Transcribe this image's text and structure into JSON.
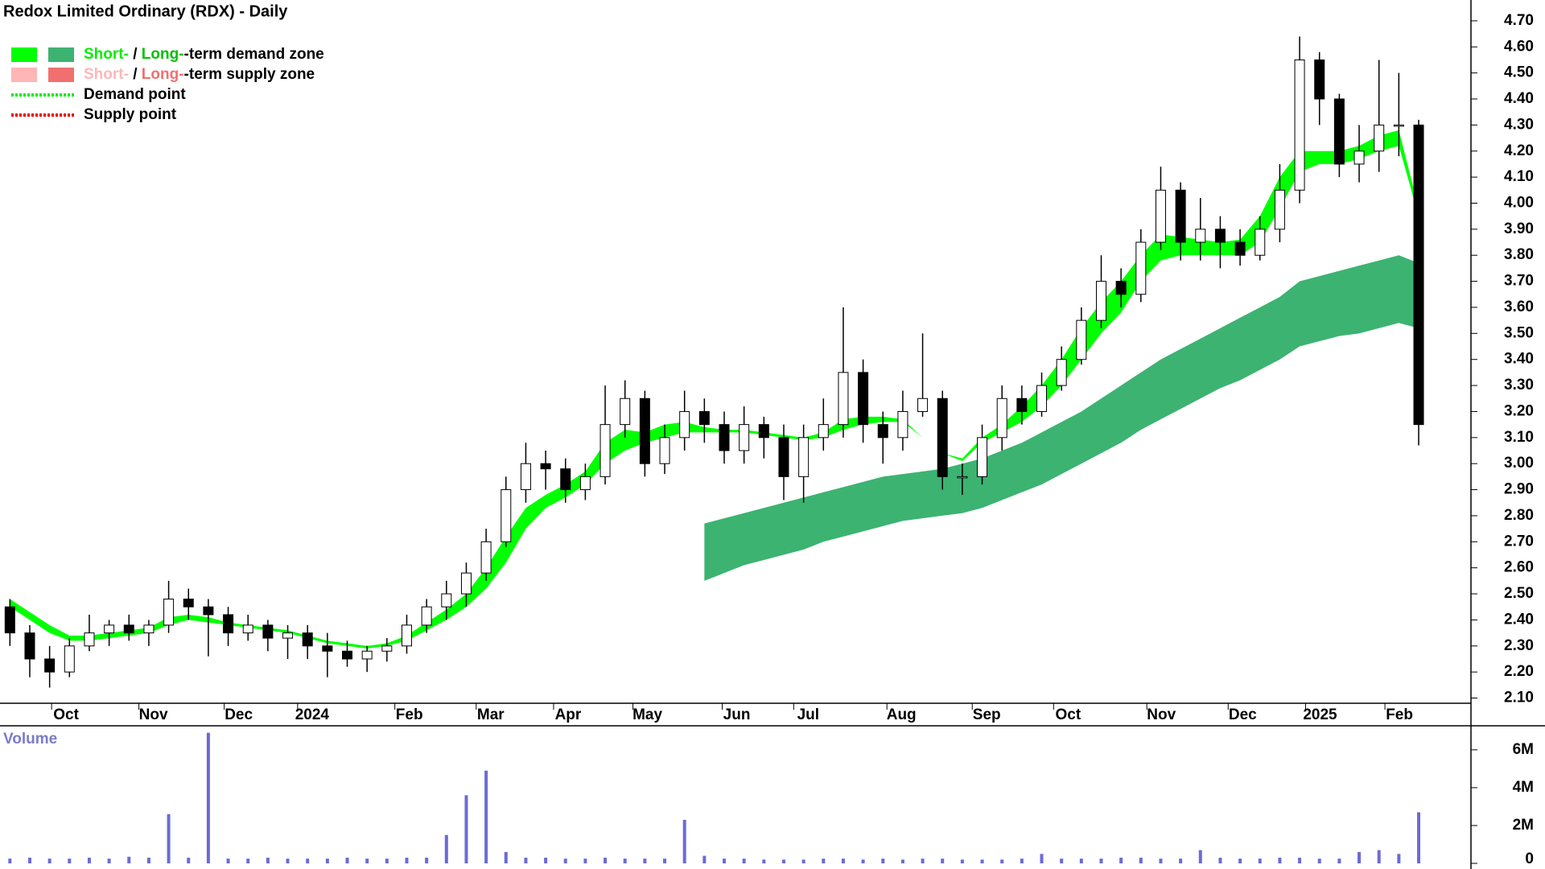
{
  "chart_data": {
    "type": "candlestick",
    "title": "Redox Limited Ordinary (RDX) - Daily",
    "legend": [
      {
        "swatches": [
          "#00ff00",
          "#3cb371"
        ],
        "parts": [
          {
            "text": "Short-",
            "color": "#00ee00"
          },
          {
            "text": " / ",
            "color": "#000000"
          },
          {
            "text": "Long-",
            "color": "#00c000"
          },
          {
            "text": "-term demand zone",
            "color": "#000000"
          }
        ]
      },
      {
        "swatches": [
          "#ffb6b6",
          "#f07070"
        ],
        "parts": [
          {
            "text": "Short-",
            "color": "#ffb6b6"
          },
          {
            "text": " / ",
            "color": "#000000"
          },
          {
            "text": "Long-",
            "color": "#f07070"
          },
          {
            "text": "-term supply zone",
            "color": "#000000"
          }
        ]
      },
      {
        "dotted": "#00ee00",
        "parts": [
          {
            "text": "Demand point",
            "color": "#000000"
          }
        ]
      },
      {
        "dotted": "#ee0000",
        "parts": [
          {
            "text": "Supply point",
            "color": "#000000"
          }
        ]
      }
    ],
    "x": [
      0,
      1,
      2,
      3,
      4,
      5,
      6,
      7,
      8,
      9,
      10,
      11,
      12,
      13,
      14,
      15,
      16,
      17,
      18,
      19,
      20,
      21,
      22,
      23,
      24,
      25,
      26,
      27,
      28,
      29,
      30,
      31,
      32,
      33,
      34,
      35,
      36,
      37,
      38,
      39,
      40,
      41,
      42,
      43,
      44,
      45,
      46,
      47,
      48,
      49,
      50,
      51,
      52,
      53,
      54,
      55,
      56,
      57,
      58,
      59,
      60,
      61,
      62,
      63,
      64,
      65,
      66,
      67,
      68,
      69,
      70,
      71
    ],
    "open": [
      2.45,
      2.35,
      2.25,
      2.2,
      2.3,
      2.35,
      2.38,
      2.35,
      2.38,
      2.48,
      2.45,
      2.42,
      2.35,
      2.38,
      2.33,
      2.35,
      2.3,
      2.28,
      2.25,
      2.28,
      2.3,
      2.38,
      2.45,
      2.5,
      2.58,
      2.7,
      2.9,
      3.0,
      2.98,
      2.9,
      2.95,
      3.15,
      3.25,
      3.0,
      3.1,
      3.2,
      3.15,
      3.05,
      3.15,
      3.1,
      2.95,
      3.1,
      3.15,
      3.35,
      3.15,
      3.1,
      3.2,
      3.25,
      2.95,
      2.95,
      3.1,
      3.25,
      3.2,
      3.3,
      3.4,
      3.55,
      3.7,
      3.65,
      3.85,
      4.05,
      3.85,
      3.9,
      3.85,
      3.8,
      3.9,
      4.05,
      4.55,
      4.4,
      4.15,
      4.2,
      4.3,
      4.3
    ],
    "high": [
      2.48,
      2.38,
      2.3,
      2.33,
      2.42,
      2.4,
      2.42,
      2.4,
      2.55,
      2.52,
      2.48,
      2.45,
      2.42,
      2.4,
      2.38,
      2.38,
      2.35,
      2.32,
      2.3,
      2.33,
      2.42,
      2.48,
      2.55,
      2.62,
      2.75,
      2.95,
      3.08,
      3.05,
      3.02,
      3.0,
      3.3,
      3.32,
      3.28,
      3.15,
      3.28,
      3.25,
      3.2,
      3.22,
      3.18,
      3.15,
      3.15,
      3.25,
      3.6,
      3.4,
      3.2,
      3.28,
      3.5,
      3.28,
      3.0,
      3.15,
      3.3,
      3.3,
      3.35,
      3.45,
      3.6,
      3.8,
      3.75,
      3.9,
      4.14,
      4.08,
      4.02,
      3.95,
      3.9,
      3.95,
      4.15,
      4.64,
      4.58,
      4.42,
      4.3,
      4.55,
      4.5,
      4.32
    ],
    "low": [
      2.3,
      2.18,
      2.14,
      2.18,
      2.28,
      2.3,
      2.32,
      2.3,
      2.35,
      2.4,
      2.26,
      2.3,
      2.32,
      2.28,
      2.25,
      2.25,
      2.18,
      2.22,
      2.2,
      2.24,
      2.27,
      2.35,
      2.4,
      2.45,
      2.55,
      2.68,
      2.85,
      2.9,
      2.85,
      2.86,
      2.92,
      3.1,
      2.95,
      2.96,
      3.05,
      3.08,
      3.0,
      3.0,
      3.02,
      2.86,
      2.85,
      3.05,
      3.1,
      3.08,
      3.0,
      3.05,
      3.18,
      2.9,
      2.88,
      2.92,
      3.05,
      3.15,
      3.18,
      3.28,
      3.38,
      3.52,
      3.6,
      3.62,
      3.82,
      3.78,
      3.78,
      3.75,
      3.76,
      3.78,
      3.85,
      4.0,
      4.3,
      4.1,
      4.08,
      4.12,
      4.18,
      3.07
    ],
    "close": [
      2.35,
      2.25,
      2.2,
      2.3,
      2.35,
      2.38,
      2.35,
      2.38,
      2.48,
      2.45,
      2.42,
      2.35,
      2.38,
      2.33,
      2.35,
      2.3,
      2.28,
      2.25,
      2.28,
      2.3,
      2.38,
      2.45,
      2.5,
      2.58,
      2.7,
      2.9,
      3.0,
      2.98,
      2.9,
      2.95,
      3.15,
      3.25,
      3.0,
      3.1,
      3.2,
      3.15,
      3.05,
      3.15,
      3.1,
      2.95,
      3.1,
      3.15,
      3.35,
      3.15,
      3.1,
      3.2,
      3.25,
      2.95,
      2.95,
      3.1,
      3.25,
      3.2,
      3.3,
      3.4,
      3.55,
      3.7,
      3.65,
      3.85,
      4.05,
      3.85,
      3.9,
      3.85,
      3.8,
      3.9,
      4.05,
      4.55,
      4.4,
      4.15,
      4.2,
      4.3,
      4.3,
      3.15
    ],
    "short_term_zone": {
      "color": "#00ff00",
      "upper": [
        2.48,
        2.43,
        2.38,
        2.34,
        2.34,
        2.35,
        2.36,
        2.37,
        2.41,
        2.42,
        2.41,
        2.39,
        2.38,
        2.37,
        2.36,
        2.34,
        2.32,
        2.31,
        2.3,
        2.31,
        2.34,
        2.39,
        2.44,
        2.5,
        2.6,
        2.72,
        2.83,
        2.88,
        2.92,
        2.97,
        3.08,
        3.13,
        3.12,
        3.15,
        3.16,
        3.14,
        3.13,
        3.13,
        3.12,
        3.11,
        3.1,
        3.12,
        3.17,
        3.18,
        3.18,
        3.17,
        3.1,
        3.04,
        3.02,
        3.1,
        3.15,
        3.22,
        3.3,
        3.4,
        3.52,
        3.62,
        3.7,
        3.8,
        3.88,
        3.87,
        3.86,
        3.85,
        3.86,
        3.95,
        4.1,
        4.2,
        4.2,
        4.2,
        4.22,
        4.26,
        4.28,
        3.98
      ],
      "lower": [
        2.45,
        2.4,
        2.35,
        2.32,
        2.32,
        2.33,
        2.34,
        2.35,
        2.38,
        2.4,
        2.39,
        2.38,
        2.37,
        2.36,
        2.35,
        2.33,
        2.31,
        2.3,
        2.29,
        2.3,
        2.32,
        2.36,
        2.4,
        2.45,
        2.52,
        2.62,
        2.75,
        2.83,
        2.87,
        2.92,
        3.0,
        3.05,
        3.08,
        3.1,
        3.12,
        3.12,
        3.12,
        3.12,
        3.11,
        3.1,
        3.09,
        3.1,
        3.13,
        3.15,
        3.16,
        3.16,
        3.1,
        3.04,
        3.01,
        3.08,
        3.12,
        3.16,
        3.22,
        3.3,
        3.4,
        3.5,
        3.58,
        3.7,
        3.78,
        3.8,
        3.8,
        3.8,
        3.8,
        3.85,
        3.98,
        4.12,
        4.15,
        4.15,
        4.17,
        4.2,
        4.22,
        3.95
      ]
    },
    "long_term_zone": {
      "color": "#3cb371",
      "upper": [
        null,
        null,
        null,
        null,
        null,
        null,
        null,
        null,
        null,
        null,
        null,
        null,
        null,
        null,
        null,
        null,
        null,
        null,
        null,
        null,
        null,
        null,
        null,
        null,
        null,
        null,
        null,
        null,
        null,
        null,
        null,
        null,
        null,
        null,
        null,
        2.77,
        2.79,
        2.81,
        2.83,
        2.85,
        2.87,
        2.89,
        2.91,
        2.93,
        2.95,
        2.96,
        2.97,
        2.98,
        3.0,
        3.02,
        3.05,
        3.08,
        3.12,
        3.16,
        3.2,
        3.25,
        3.3,
        3.35,
        3.4,
        3.44,
        3.48,
        3.52,
        3.56,
        3.6,
        3.64,
        3.7,
        3.72,
        3.74,
        3.76,
        3.78,
        3.8,
        3.77
      ],
      "lower": [
        null,
        null,
        null,
        null,
        null,
        null,
        null,
        null,
        null,
        null,
        null,
        null,
        null,
        null,
        null,
        null,
        null,
        null,
        null,
        null,
        null,
        null,
        null,
        null,
        null,
        null,
        null,
        null,
        null,
        null,
        null,
        null,
        null,
        null,
        null,
        2.55,
        2.58,
        2.61,
        2.63,
        2.65,
        2.67,
        2.7,
        2.72,
        2.74,
        2.76,
        2.78,
        2.79,
        2.8,
        2.81,
        2.83,
        2.86,
        2.89,
        2.92,
        2.96,
        3.0,
        3.04,
        3.08,
        3.13,
        3.17,
        3.21,
        3.25,
        3.29,
        3.32,
        3.36,
        3.4,
        3.45,
        3.47,
        3.49,
        3.5,
        3.52,
        3.54,
        3.52
      ]
    },
    "xlim": [
      -0.5,
      72.5
    ],
    "xticks": [
      {
        "value": 2.1,
        "label": "Oct"
      },
      {
        "value": 6.5,
        "label": "Nov"
      },
      {
        "value": 10.8,
        "label": "Dec"
      },
      {
        "value": 14.5,
        "label": "2024"
      },
      {
        "value": 19.4,
        "label": "Feb"
      },
      {
        "value": 23.5,
        "label": "Mar"
      },
      {
        "value": 27.4,
        "label": "Apr"
      },
      {
        "value": 31.4,
        "label": "May"
      },
      {
        "value": 35.9,
        "label": "Jun"
      },
      {
        "value": 39.5,
        "label": "Jul"
      },
      {
        "value": 44.2,
        "label": "Aug"
      },
      {
        "value": 48.5,
        "label": "Sep"
      },
      {
        "value": 52.6,
        "label": "Oct"
      },
      {
        "value": 57.3,
        "label": "Nov"
      },
      {
        "value": 61.4,
        "label": "Dec"
      },
      {
        "value": 65.3,
        "label": "2025"
      },
      {
        "value": 69.3,
        "label": "Feb"
      }
    ],
    "ylim": [
      2.08,
      4.78
    ],
    "yticks": [
      {
        "value": 2.1,
        "label": "2.10"
      },
      {
        "value": 2.2,
        "label": "2.20"
      },
      {
        "value": 2.3,
        "label": "2.30"
      },
      {
        "value": 2.4,
        "label": "2.40"
      },
      {
        "value": 2.5,
        "label": "2.50"
      },
      {
        "value": 2.6,
        "label": "2.60"
      },
      {
        "value": 2.7,
        "label": "2.70"
      },
      {
        "value": 2.8,
        "label": "2.80"
      },
      {
        "value": 2.9,
        "label": "2.90"
      },
      {
        "value": 3.0,
        "label": "3.00"
      },
      {
        "value": 3.1,
        "label": "3.10"
      },
      {
        "value": 3.2,
        "label": "3.20"
      },
      {
        "value": 3.3,
        "label": "3.30"
      },
      {
        "value": 3.4,
        "label": "3.40"
      },
      {
        "value": 3.5,
        "label": "3.50"
      },
      {
        "value": 3.6,
        "label": "3.60"
      },
      {
        "value": 3.7,
        "label": "3.70"
      },
      {
        "value": 3.8,
        "label": "3.80"
      },
      {
        "value": 3.9,
        "label": "3.90"
      },
      {
        "value": 4.0,
        "label": "4.00"
      },
      {
        "value": 4.1,
        "label": "4.10"
      },
      {
        "value": 4.2,
        "label": "4.20"
      },
      {
        "value": 4.3,
        "label": "4.30"
      },
      {
        "value": 4.4,
        "label": "4.40"
      },
      {
        "value": 4.5,
        "label": "4.50"
      },
      {
        "value": 4.6,
        "label": "4.60"
      },
      {
        "value": 4.7,
        "label": "4.70"
      }
    ],
    "volume": {
      "label": "Volume",
      "color": "#6b6bd6",
      "values": [
        250000,
        300000,
        250000,
        250000,
        300000,
        250000,
        350000,
        300000,
        2600000,
        300000,
        6900000,
        250000,
        250000,
        300000,
        250000,
        250000,
        250000,
        300000,
        250000,
        250000,
        300000,
        300000,
        1500000,
        3600000,
        4900000,
        600000,
        300000,
        300000,
        250000,
        250000,
        300000,
        250000,
        250000,
        250000,
        2300000,
        400000,
        250000,
        250000,
        200000,
        200000,
        200000,
        250000,
        250000,
        200000,
        250000,
        200000,
        250000,
        250000,
        200000,
        200000,
        200000,
        250000,
        500000,
        250000,
        250000,
        250000,
        300000,
        300000,
        250000,
        250000,
        700000,
        300000,
        250000,
        250000,
        300000,
        300000,
        250000,
        250000,
        600000,
        700000,
        500000,
        2700000
      ],
      "ylim": [
        0,
        7100000
      ],
      "yticks": [
        0,
        {
          "value": 2000000,
          "label": "2M"
        },
        {
          "value": 4000000,
          "label": "4M"
        },
        {
          "value": 6000000,
          "label": "6M"
        }
      ]
    }
  }
}
